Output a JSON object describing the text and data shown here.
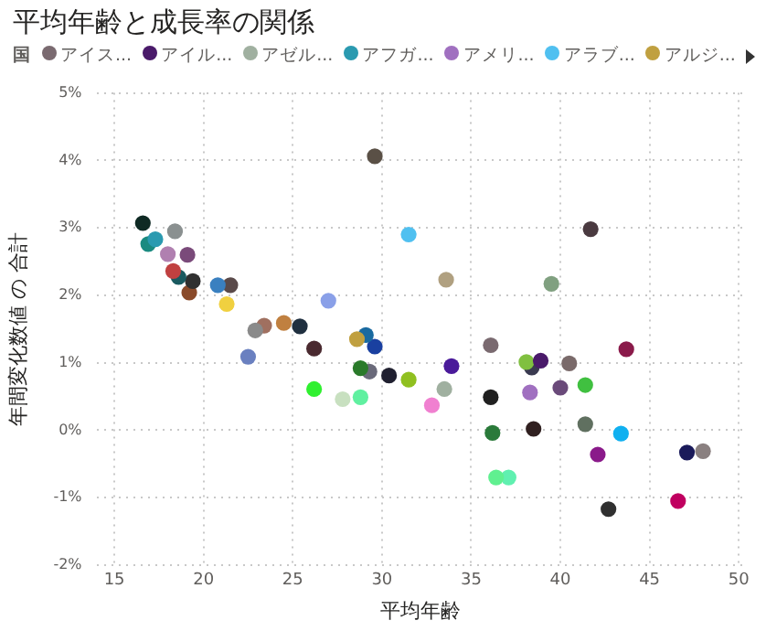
{
  "chart_data": {
    "type": "scatter",
    "title": "平均年齢と成長率の関係",
    "xlabel": "平均年齢",
    "ylabel": "年間変化数値 の 合計",
    "legend_title": "国",
    "legend": "top left",
    "grid": true,
    "marker": "circle",
    "xlim": [
      14,
      50.3
    ],
    "xticks": [
      15,
      20,
      25,
      30,
      35,
      40,
      45,
      50
    ],
    "ylim": [
      -2,
      5
    ],
    "yticks": [
      {
        "value": -2,
        "label": "-2%"
      },
      {
        "value": -1,
        "label": "-1%"
      },
      {
        "value": 0,
        "label": "0%"
      },
      {
        "value": 1,
        "label": "1%"
      },
      {
        "value": 2,
        "label": "2%"
      },
      {
        "value": 3,
        "label": "3%"
      },
      {
        "value": 4,
        "label": "4%"
      },
      {
        "value": 5,
        "label": "5%"
      }
    ],
    "series": [
      {
        "name": "アイス...",
        "color": "#7a6a70",
        "x": [
          36.1
        ],
        "values": [
          1.26
        ]
      },
      {
        "name": "アイル...",
        "color": "#4a1a6a",
        "x": [
          38.9
        ],
        "values": [
          1.03
        ]
      },
      {
        "name": "アゼル...",
        "color": "#a0b0a0",
        "x": [
          33.5
        ],
        "values": [
          0.61
        ]
      },
      {
        "name": "アフガ...",
        "color": "#2a9ab0",
        "x": [
          17.3
        ],
        "values": [
          2.83
        ]
      },
      {
        "name": "アメリ...",
        "color": "#a070c0",
        "x": [
          38.3
        ],
        "values": [
          0.56
        ]
      },
      {
        "name": "アラブ...",
        "color": "#50c0f0",
        "x": [
          31.5
        ],
        "values": [
          2.9
        ]
      },
      {
        "name": "アルジ...",
        "color": "#c0a040",
        "x": [
          28.6
        ],
        "values": [
          1.35
        ]
      },
      {
        "color": "#5a5046",
        "x": [
          29.6
        ],
        "values": [
          4.06
        ]
      },
      {
        "color": "#0f2a24",
        "x": [
          16.6
        ],
        "values": [
          3.07
        ]
      },
      {
        "color": "#1a8a80",
        "x": [
          16.9
        ],
        "values": [
          2.76
        ]
      },
      {
        "color": "#8a9090",
        "x": [
          18.4
        ],
        "values": [
          2.95
        ]
      },
      {
        "color": "#b080b0",
        "x": [
          18.0
        ],
        "values": [
          2.61
        ]
      },
      {
        "color": "#7a4a7a",
        "x": [
          19.1
        ],
        "values": [
          2.6
        ]
      },
      {
        "color": "#c04040",
        "x": [
          18.3
        ],
        "values": [
          2.36
        ]
      },
      {
        "color": "#1a5a60",
        "x": [
          18.6
        ],
        "values": [
          2.27
        ]
      },
      {
        "color": "#303030",
        "x": [
          19.4
        ],
        "values": [
          2.21
        ]
      },
      {
        "color": "#8a4a2a",
        "x": [
          19.2
        ],
        "values": [
          2.04
        ]
      },
      {
        "color": "#3a80c0",
        "x": [
          20.8
        ],
        "values": [
          2.15
        ]
      },
      {
        "color": "#5a4a4a",
        "x": [
          21.5
        ],
        "values": [
          2.15
        ]
      },
      {
        "color": "#f0d040",
        "x": [
          21.3
        ],
        "values": [
          1.87
        ]
      },
      {
        "color": "#8aa0e8",
        "x": [
          27.0
        ],
        "values": [
          1.92
        ]
      },
      {
        "color": "#8a8a8a",
        "x": [
          22.9
        ],
        "values": [
          1.48
        ]
      },
      {
        "color": "#a07060",
        "x": [
          23.4
        ],
        "values": [
          1.55
        ]
      },
      {
        "color": "#c08040",
        "x": [
          24.5
        ],
        "values": [
          1.59
        ]
      },
      {
        "color": "#203040",
        "x": [
          25.4
        ],
        "values": [
          1.54
        ]
      },
      {
        "color": "#6a80c0",
        "x": [
          22.5
        ],
        "values": [
          1.09
        ]
      },
      {
        "color": "#4a2a30",
        "x": [
          26.2
        ],
        "values": [
          1.21
        ]
      },
      {
        "color": "#1a6aa0",
        "x": [
          29.1
        ],
        "values": [
          1.41
        ]
      },
      {
        "color": "#1a40a0",
        "x": [
          29.6
        ],
        "values": [
          1.24
        ]
      },
      {
        "color": "#2a7a2a",
        "x": [
          28.8
        ],
        "values": [
          0.92
        ]
      },
      {
        "color": "#6a6a7a",
        "x": [
          29.3
        ],
        "values": [
          0.87
        ]
      },
      {
        "color": "#202030",
        "x": [
          30.4
        ],
        "values": [
          0.81
        ]
      },
      {
        "color": "#90c020",
        "x": [
          31.5
        ],
        "values": [
          0.75
        ]
      },
      {
        "color": "#30f030",
        "x": [
          26.2
        ],
        "values": [
          0.61
        ]
      },
      {
        "color": "#c8e0c0",
        "x": [
          27.8
        ],
        "values": [
          0.46
        ]
      },
      {
        "color": "#60f0a0",
        "x": [
          28.8
        ],
        "values": [
          0.49
        ]
      },
      {
        "color": "#f080d0",
        "x": [
          32.8
        ],
        "values": [
          0.37
        ]
      },
      {
        "color": "#4a1a9a",
        "x": [
          33.9
        ],
        "values": [
          0.95
        ]
      },
      {
        "color": "#202020",
        "x": [
          36.1
        ],
        "values": [
          0.49
        ]
      },
      {
        "color": "#2a7a3a",
        "x": [
          36.2
        ],
        "values": [
          -0.04
        ]
      },
      {
        "color": "#60f090",
        "x": [
          36.4
        ],
        "values": [
          -0.7
        ]
      },
      {
        "color": "#60f0b0",
        "x": [
          37.1
        ],
        "values": [
          -0.7
        ]
      },
      {
        "color": "#80c040",
        "x": [
          38.1
        ],
        "values": [
          1.01
        ]
      },
      {
        "color": "#3a3a50",
        "x": [
          38.4
        ],
        "values": [
          0.93
        ]
      },
      {
        "color": "#302020",
        "x": [
          38.5
        ],
        "values": [
          0.02
        ]
      },
      {
        "color": "#6a4a7a",
        "x": [
          40.0
        ],
        "values": [
          0.63
        ]
      },
      {
        "color": "#7a6a6a",
        "x": [
          40.5
        ],
        "values": [
          0.99
        ]
      },
      {
        "color": "#40c040",
        "x": [
          41.4
        ],
        "values": [
          0.67
        ]
      },
      {
        "color": "#607060",
        "x": [
          41.4
        ],
        "values": [
          0.09
        ]
      },
      {
        "color": "#8a1a8a",
        "x": [
          42.1
        ],
        "values": [
          -0.36
        ]
      },
      {
        "color": "#303030",
        "x": [
          42.7
        ],
        "values": [
          -1.17
        ]
      },
      {
        "color": "#10b0f0",
        "x": [
          43.4
        ],
        "values": [
          -0.05
        ]
      },
      {
        "color": "#8a1a4a",
        "x": [
          43.7
        ],
        "values": [
          1.2
        ]
      },
      {
        "color": "#c00060",
        "x": [
          46.6
        ],
        "values": [
          -1.05
        ]
      },
      {
        "color": "#1a1a5a",
        "x": [
          47.1
        ],
        "values": [
          -0.33
        ]
      },
      {
        "color": "#8a8080",
        "x": [
          48.0
        ],
        "values": [
          -0.31
        ]
      },
      {
        "color": "#4a3a40",
        "x": [
          41.7
        ],
        "values": [
          2.98
        ]
      },
      {
        "color": "#b0a080",
        "x": [
          33.6
        ],
        "values": [
          2.23
        ]
      },
      {
        "color": "#80a080",
        "x": [
          39.5
        ],
        "values": [
          2.17
        ]
      }
    ]
  }
}
